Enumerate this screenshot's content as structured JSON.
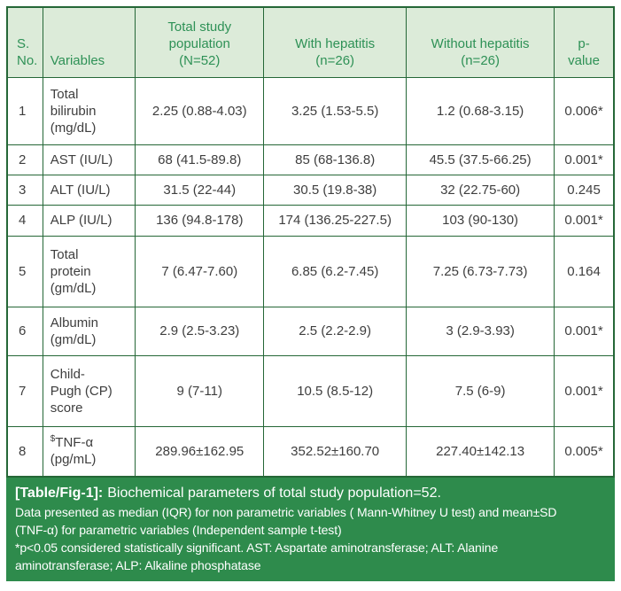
{
  "colors": {
    "header_bg": "#dcebd9",
    "header_text": "#2e9156",
    "border": "#256737",
    "footer_bg": "#2e8b4c",
    "body_text": "#3e3e3e"
  },
  "table": {
    "headers": [
      "S.\nNo.",
      "Variables",
      "Total study\npopulation\n(N=52)",
      "With hepatitis\n(n=26)",
      "Without hepatitis\n(n=26)",
      "p-\nvalue"
    ],
    "rows": [
      {
        "no": "1",
        "sup": "",
        "variable": "Total\nbilirubin\n(mg/dL)",
        "total": "2.25 (0.88-4.03)",
        "with_hepatitis": "3.25 (1.53-5.5)",
        "without_hepatitis": "1.2 (0.68-3.15)",
        "p_value": "0.006*"
      },
      {
        "no": "2",
        "sup": "",
        "variable": "AST (IU/L)",
        "total": "68 (41.5-89.8)",
        "with_hepatitis": "85 (68-136.8)",
        "without_hepatitis": "45.5 (37.5-66.25)",
        "p_value": "0.001*"
      },
      {
        "no": "3",
        "sup": "",
        "variable": "ALT (IU/L)",
        "total": "31.5 (22-44)",
        "with_hepatitis": "30.5 (19.8-38)",
        "without_hepatitis": "32 (22.75-60)",
        "p_value": "0.245"
      },
      {
        "no": "4",
        "sup": "",
        "variable": "ALP (IU/L)",
        "total": "136 (94.8-178)",
        "with_hepatitis": "174 (136.25-227.5)",
        "without_hepatitis": "103 (90-130)",
        "p_value": "0.001*"
      },
      {
        "no": "5",
        "sup": "",
        "variable": "Total\nprotein\n(gm/dL)",
        "total": "7 (6.47-7.60)",
        "with_hepatitis": "6.85 (6.2-7.45)",
        "without_hepatitis": "7.25 (6.73-7.73)",
        "p_value": "0.164"
      },
      {
        "no": "6",
        "sup": "",
        "variable": "Albumin\n(gm/dL)",
        "total": "2.9 (2.5-3.23)",
        "with_hepatitis": "2.5 (2.2-2.9)",
        "without_hepatitis": "3 (2.9-3.93)",
        "p_value": "0.001*"
      },
      {
        "no": "7",
        "sup": "",
        "variable": "Child-\nPugh (CP)\nscore",
        "total": "9 (7-11)",
        "with_hepatitis": "10.5 (8.5-12)",
        "without_hepatitis": "7.5 (6-9)",
        "p_value": "0.001*"
      },
      {
        "no": "8",
        "sup": "$",
        "variable": "TNF-α\n(pg/mL)",
        "total": "289.96±162.95",
        "with_hepatitis": "352.52±160.70",
        "without_hepatitis": "227.40±142.13",
        "p_value": "0.005*"
      }
    ]
  },
  "caption": {
    "label": "[Table/Fig-1]:",
    "title": "Biochemical parameters of total study population=52.",
    "note1": "Data presented as median (IQR) for non parametric variables ( Mann-Whitney U test) and mean±SD\n(TNF-α) for parametric variables (Independent sample t-test)",
    "note2": "*p<0.05 considered statistically significant. AST: Aspartate aminotransferase; ALT: Alanine\naminotransferase; ALP: Alkaline phosphatase"
  }
}
